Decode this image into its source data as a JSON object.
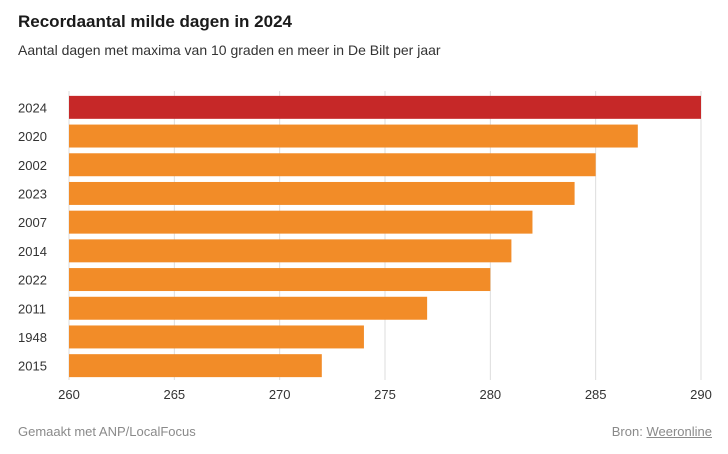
{
  "chart_data": {
    "type": "bar",
    "orientation": "horizontal",
    "title": "Recordaantal milde dagen in 2024",
    "subtitle": "Aantal dagen met maxima van 10 graden en meer in De Bilt per jaar",
    "categories": [
      "2024",
      "2020",
      "2002",
      "2023",
      "2007",
      "2014",
      "2022",
      "2011",
      "1948",
      "2015"
    ],
    "values": [
      290,
      287,
      285,
      284,
      282,
      281,
      280,
      277,
      274,
      272
    ],
    "xlim": [
      260,
      290
    ],
    "xticks": [
      "260",
      "265",
      "270",
      "275",
      "280",
      "285",
      "290"
    ],
    "grid": true,
    "colors": {
      "highlight": "#c62828",
      "bar": "#f28c28",
      "grid": "#dddddd"
    }
  },
  "footer": {
    "credit": "Gemaakt met ANP/LocalFocus",
    "source_prefix": "Bron:",
    "source_link": "Weeronline"
  }
}
